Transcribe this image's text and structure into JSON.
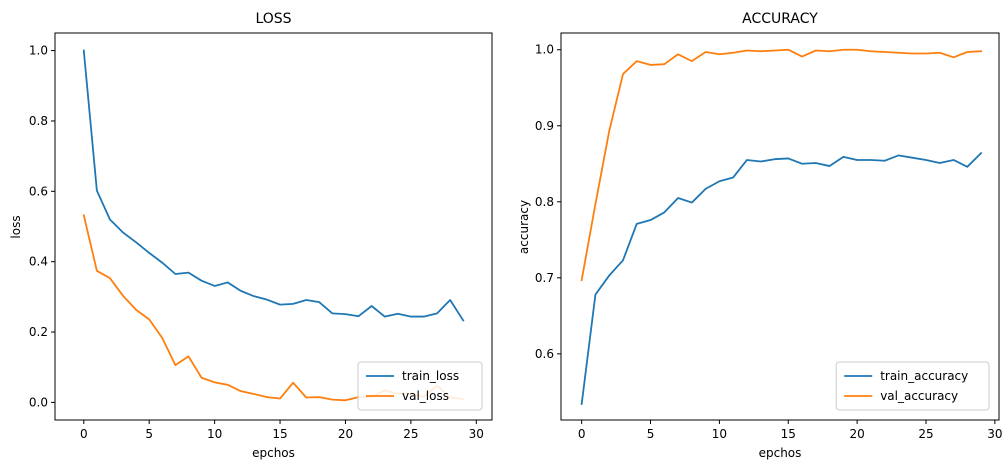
{
  "chart_data": [
    {
      "type": "line",
      "title": "LOSS",
      "xlabel": "epchos",
      "ylabel": "loss",
      "xlim": [
        -2.2,
        31.2
      ],
      "ylim": [
        -0.05,
        1.05
      ],
      "xticks": [
        0,
        5,
        10,
        15,
        20,
        25,
        30
      ],
      "yticks": [
        0.0,
        0.2,
        0.4,
        0.6,
        0.8,
        1.0
      ],
      "ytick_labels": [
        "0.0",
        "0.2",
        "0.4",
        "0.6",
        "0.8",
        "1.0"
      ],
      "legend_position": "top-right",
      "grid": false,
      "x": [
        0,
        1,
        2,
        3,
        4,
        5,
        6,
        7,
        8,
        9,
        10,
        11,
        12,
        13,
        14,
        15,
        16,
        17,
        18,
        19,
        20,
        21,
        22,
        23,
        24,
        25,
        26,
        27,
        28,
        29
      ],
      "series": [
        {
          "name": "train_loss",
          "color": "#1f77b4",
          "values": [
            1.0,
            0.602,
            0.52,
            0.483,
            0.455,
            0.425,
            0.397,
            0.365,
            0.369,
            0.346,
            0.331,
            0.341,
            0.317,
            0.302,
            0.292,
            0.278,
            0.28,
            0.291,
            0.285,
            0.253,
            0.251,
            0.245,
            0.274,
            0.244,
            0.252,
            0.244,
            0.244,
            0.253,
            0.291,
            0.233
          ]
        },
        {
          "name": "val_loss",
          "color": "#ff7f0e",
          "values": [
            0.532,
            0.374,
            0.353,
            0.303,
            0.263,
            0.236,
            0.183,
            0.106,
            0.131,
            0.07,
            0.057,
            0.05,
            0.032,
            0.024,
            0.015,
            0.011,
            0.056,
            0.014,
            0.015,
            0.008,
            0.006,
            0.015,
            0.016,
            0.034,
            0.025,
            0.025,
            0.016,
            0.048,
            0.014,
            0.01
          ]
        }
      ]
    },
    {
      "type": "line",
      "title": "ACCURACY",
      "xlabel": "epchos",
      "ylabel": "accuracy",
      "xlim": [
        -1.5,
        30.3
      ],
      "ylim": [
        0.513,
        1.022
      ],
      "xticks": [
        0,
        5,
        10,
        15,
        20,
        25,
        30
      ],
      "yticks": [
        0.6,
        0.7,
        0.8,
        0.9,
        1.0
      ],
      "ytick_labels": [
        "0.6",
        "0.7",
        "0.8",
        "0.9",
        "1.0"
      ],
      "legend_position": "lower-right",
      "grid": false,
      "x": [
        0,
        1,
        2,
        3,
        4,
        5,
        6,
        7,
        8,
        9,
        10,
        11,
        12,
        13,
        14,
        15,
        16,
        17,
        18,
        19,
        20,
        21,
        22,
        23,
        24,
        25,
        26,
        27,
        28,
        29
      ],
      "series": [
        {
          "name": "train_accuracy",
          "color": "#1f77b4",
          "values": [
            0.534,
            0.678,
            0.703,
            0.723,
            0.771,
            0.776,
            0.786,
            0.805,
            0.799,
            0.817,
            0.827,
            0.832,
            0.855,
            0.853,
            0.856,
            0.857,
            0.85,
            0.851,
            0.847,
            0.859,
            0.855,
            0.855,
            0.854,
            0.861,
            0.858,
            0.855,
            0.851,
            0.855,
            0.846,
            0.864
          ]
        },
        {
          "name": "val_accuracy",
          "color": "#ff7f0e",
          "values": [
            0.697,
            0.797,
            0.893,
            0.968,
            0.985,
            0.98,
            0.981,
            0.994,
            0.985,
            0.997,
            0.994,
            0.996,
            0.999,
            0.998,
            0.999,
            1.0,
            0.991,
            0.999,
            0.998,
            1.0,
            1.0,
            0.998,
            0.997,
            0.996,
            0.995,
            0.995,
            0.996,
            0.99,
            0.997,
            0.998
          ]
        }
      ]
    }
  ]
}
